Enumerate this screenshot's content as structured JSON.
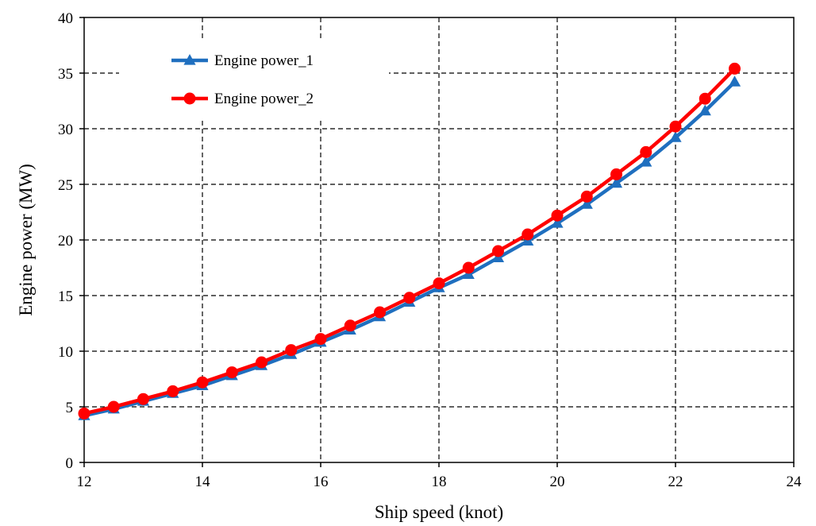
{
  "chart_data": {
    "type": "line",
    "xlabel": "Ship speed (knot)",
    "ylabel": "Engine power (MW)",
    "xlim": [
      12,
      24
    ],
    "ylim": [
      0,
      40
    ],
    "xticks": [
      12,
      14,
      16,
      18,
      20,
      22,
      24
    ],
    "yticks": [
      0,
      5,
      10,
      15,
      20,
      25,
      30,
      35,
      40
    ],
    "grid": true,
    "legend_position": "top-left",
    "x": [
      12,
      12.5,
      13,
      13.5,
      14,
      14.5,
      15,
      15.5,
      16,
      16.5,
      17,
      17.5,
      18,
      18.5,
      19,
      19.5,
      20,
      20.5,
      21,
      21.5,
      22,
      22.5,
      23
    ],
    "series": [
      {
        "name": "Engine power_1",
        "color": "#1f6fbf",
        "marker": "triangle",
        "values": [
          4.2,
          4.8,
          5.5,
          6.2,
          6.9,
          7.8,
          8.7,
          9.7,
          10.8,
          11.9,
          13.1,
          14.4,
          15.7,
          16.9,
          18.4,
          19.9,
          21.5,
          23.2,
          25.1,
          27.0,
          29.2,
          31.6,
          34.2
        ]
      },
      {
        "name": "Engine power_2",
        "color": "#ff0000",
        "marker": "circle",
        "values": [
          4.4,
          5.0,
          5.7,
          6.4,
          7.2,
          8.1,
          9.0,
          10.1,
          11.1,
          12.3,
          13.5,
          14.8,
          16.1,
          17.5,
          19.0,
          20.5,
          22.2,
          23.9,
          25.9,
          27.9,
          30.2,
          32.7,
          35.4
        ]
      }
    ]
  }
}
